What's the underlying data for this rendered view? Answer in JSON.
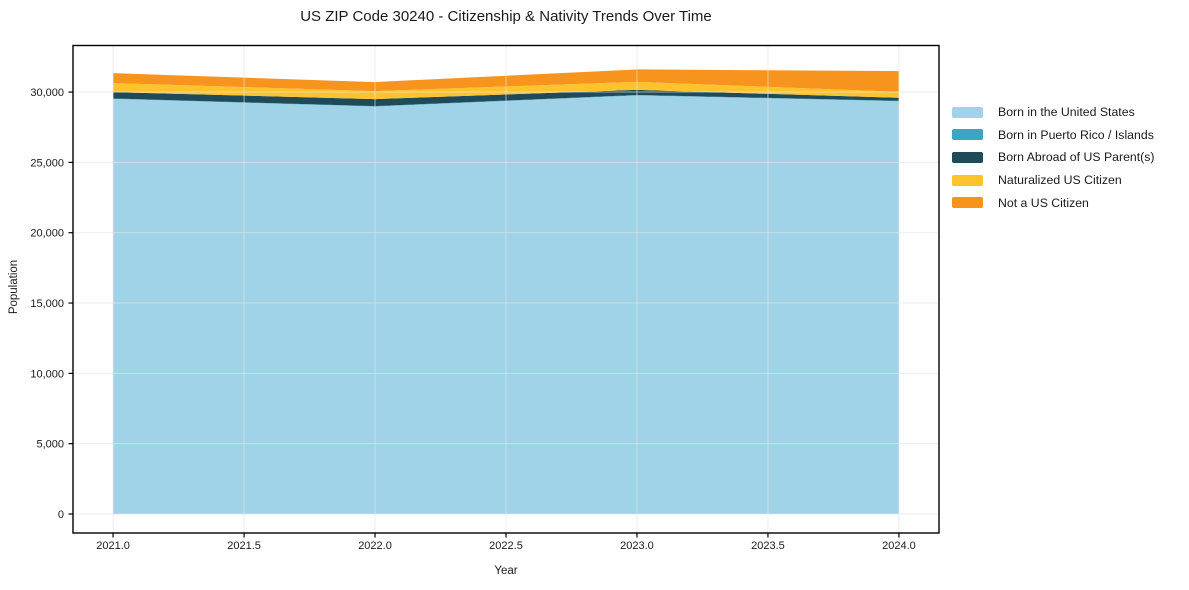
{
  "chart_data": {
    "type": "area",
    "stacked": true,
    "title": "US ZIP Code 30240 - Citizenship & Nativity Trends Over Time",
    "xlabel": "Year",
    "ylabel": "Population",
    "x": [
      2021,
      2022,
      2023,
      2024
    ],
    "series": [
      {
        "name": "Born in the United States",
        "color": "#a1d3e8",
        "values": [
          29510,
          28970,
          29760,
          29350
        ]
      },
      {
        "name": "Born in Puerto Rico / Islands",
        "color": "#3ba6c2",
        "values": [
          30,
          30,
          30,
          30
        ]
      },
      {
        "name": "Born Abroad of US Parent(s)",
        "color": "#1f4a5a",
        "values": [
          460,
          500,
          360,
          210
        ]
      },
      {
        "name": "Naturalized US Citizen",
        "color": "#fcc32d",
        "values": [
          640,
          570,
          570,
          430
        ]
      },
      {
        "name": "Not a US Citizen",
        "color": "#f7941e",
        "values": [
          710,
          640,
          890,
          1470
        ]
      }
    ],
    "stack_totals": [
      31350,
      30710,
      31610,
      31490
    ],
    "x_ticks": {
      "values": [
        2021.0,
        2021.5,
        2022.0,
        2022.5,
        2023.0,
        2023.5,
        2024.0
      ],
      "labels": [
        "2021.0",
        "2021.5",
        "2022.0",
        "2022.5",
        "2023.0",
        "2023.5",
        "2024.0"
      ]
    },
    "y_ticks": {
      "values": [
        0,
        5000,
        10000,
        15000,
        20000,
        25000,
        30000
      ],
      "labels": [
        "0",
        "5,000",
        "10,000",
        "15,000",
        "20,000",
        "25,000",
        "30,000"
      ]
    },
    "xlim": [
      2020.847,
      2024.153
    ],
    "ylim": [
      -1350,
      33310
    ],
    "grid": true,
    "legend_position": "right of plot, outside axes",
    "colors": {
      "grid": "#e3e3e3",
      "spine": "#000000",
      "text": "#1a1a1a",
      "plot_background": "#ffffff"
    }
  }
}
